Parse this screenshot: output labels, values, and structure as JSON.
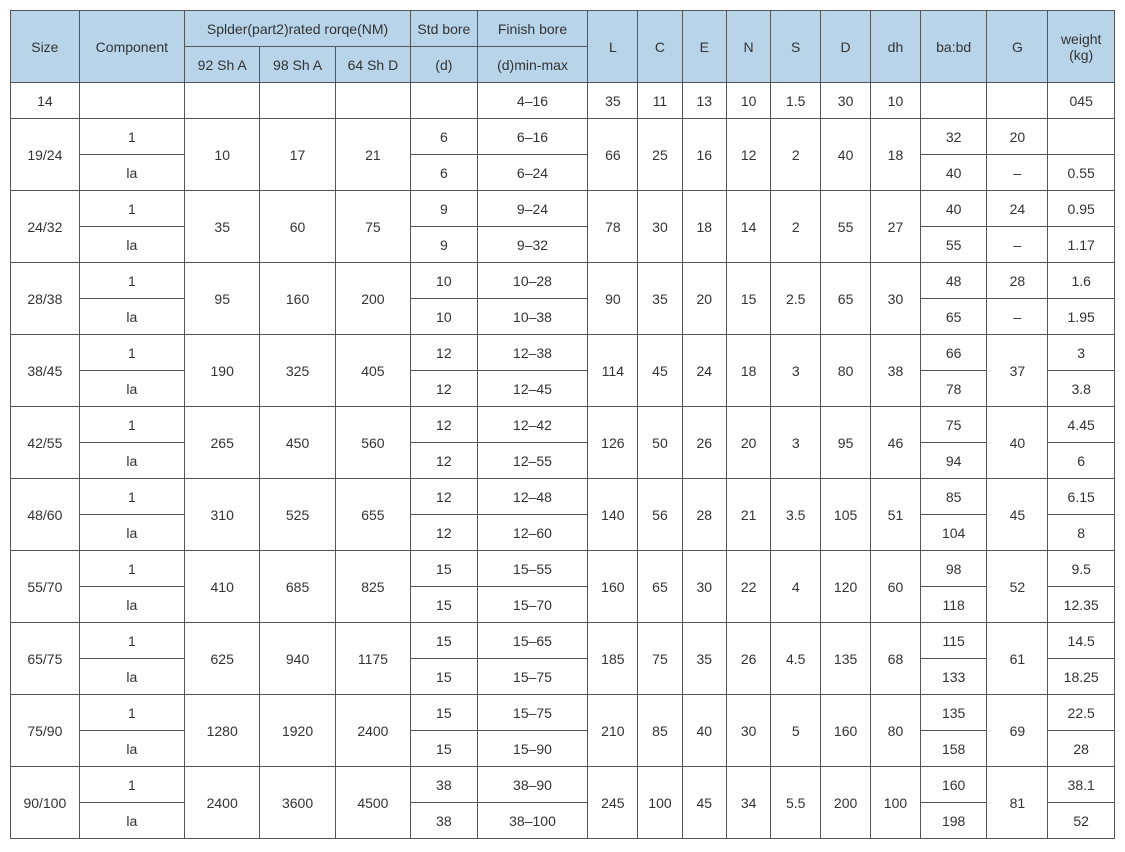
{
  "header_bg": "#b8d4e8",
  "border_color": "#555555",
  "text_color": "#333333",
  "font_size_pt": 11,
  "headers": {
    "size": "Size",
    "component": "Component",
    "spider_group": "Splder(part2)rated rorqe(NM)",
    "sh92": "92 Sh A",
    "sh98": "98 Sh A",
    "sh64": "64 Sh D",
    "stdbore_group": "Std bore",
    "stdbore_sub": "(d)",
    "finishbore_group": "Finish bore",
    "finishbore_sub": "(d)min-max",
    "L": "L",
    "C": "C",
    "E": "E",
    "N": "N",
    "S": "S",
    "D": "D",
    "dh": "dh",
    "babd": "ba:bd",
    "G": "G",
    "weight_line1": "weight",
    "weight_line2": "(kg)"
  },
  "cells": {
    "r1": {
      "size": "14",
      "fin": "4–16",
      "L": "35",
      "C": "11",
      "E": "13",
      "N": "10",
      "S": "1.5",
      "D": "30",
      "dh": "10",
      "wt": "045"
    },
    "r2": {
      "size": "19/24",
      "comp": "1",
      "sh92": "10",
      "sh98": "17",
      "sh64": "21",
      "std": "6",
      "fin": "6–16",
      "L": "66",
      "C": "25",
      "E": "16",
      "N": "12",
      "S": "2",
      "D": "40",
      "dh": "18",
      "babd": "32",
      "G": "20"
    },
    "r3": {
      "comp": "la",
      "std": "6",
      "fin": "6–24",
      "babd": "40",
      "G": "–",
      "wt": "0.55"
    },
    "r4": {
      "size": "24/32",
      "comp": "1",
      "sh92": "35",
      "sh98": "60",
      "sh64": "75",
      "std": "9",
      "fin": "9–24",
      "L": "78",
      "C": "30",
      "E": "18",
      "N": "14",
      "S": "2",
      "D": "55",
      "dh": "27",
      "babd": "40",
      "G": "24",
      "wt": "0.95"
    },
    "r5": {
      "comp": "la",
      "std": "9",
      "fin": "9–32",
      "babd": "55",
      "G": "–",
      "wt": "1.17"
    },
    "r6": {
      "size": "28/38",
      "comp": "1",
      "sh92": "95",
      "sh98": "160",
      "sh64": "200",
      "std": "10",
      "fin": "10–28",
      "L": "90",
      "C": "35",
      "E": "20",
      "N": "15",
      "S": "2.5",
      "D": "65",
      "dh": "30",
      "babd": "48",
      "G": "28",
      "wt": "1.6"
    },
    "r7": {
      "comp": "la",
      "std": "10",
      "fin": "10–38",
      "babd": "65",
      "G": "–",
      "wt": "1.95"
    },
    "r8": {
      "size": "38/45",
      "comp": "1",
      "sh92": "190",
      "sh98": "325",
      "sh64": "405",
      "std": "12",
      "fin": "12–38",
      "L": "114",
      "C": "45",
      "E": "24",
      "N": "18",
      "S": "3",
      "D": "80",
      "dh": "38",
      "babd": "66",
      "G": "37",
      "wt": "3"
    },
    "r9": {
      "comp": "la",
      "std": "12",
      "fin": "12–45",
      "babd": "78",
      "wt": "3.8"
    },
    "r10": {
      "size": "42/55",
      "comp": "1",
      "sh92": "265",
      "sh98": "450",
      "sh64": "560",
      "std": "12",
      "fin": "12–42",
      "L": "126",
      "C": "50",
      "E": "26",
      "N": "20",
      "S": "3",
      "D": "95",
      "dh": "46",
      "babd": "75",
      "G": "40",
      "wt": "4.45"
    },
    "r11": {
      "comp": "la",
      "std": "12",
      "fin": "12–55",
      "babd": "94",
      "wt": "6"
    },
    "r12": {
      "size": "48/60",
      "comp": "1",
      "sh92": "310",
      "sh98": "525",
      "sh64": "655",
      "std": "12",
      "fin": "12–48",
      "L": "140",
      "C": "56",
      "E": "28",
      "N": "21",
      "S": "3.5",
      "D": "105",
      "dh": "51",
      "babd": "85",
      "G": "45",
      "wt": "6.15"
    },
    "r13": {
      "comp": "la",
      "std": "12",
      "fin": "12–60",
      "babd": "104",
      "wt": "8"
    },
    "r14": {
      "size": "55/70",
      "comp": "1",
      "sh92": "410",
      "sh98": "685",
      "sh64": "825",
      "std": "15",
      "fin": "15–55",
      "L": "160",
      "C": "65",
      "E": "30",
      "N": "22",
      "S": "4",
      "D": "120",
      "dh": "60",
      "babd": "98",
      "G": "52",
      "wt": "9.5"
    },
    "r15": {
      "comp": "la",
      "std": "15",
      "fin": "15–70",
      "babd": "118",
      "wt": "12.35"
    },
    "r16": {
      "size": "65/75",
      "comp": "1",
      "sh92": "625",
      "sh98": "940",
      "sh64": "1175",
      "std": "15",
      "fin": "15–65",
      "L": "185",
      "C": "75",
      "E": "35",
      "N": "26",
      "S": "4.5",
      "D": "135",
      "dh": "68",
      "babd": "115",
      "G": "61",
      "wt": "14.5"
    },
    "r17": {
      "comp": "la",
      "std": "15",
      "fin": "15–75",
      "babd": "133",
      "wt": "18.25"
    },
    "r18": {
      "size": "75/90",
      "comp": "1",
      "sh92": "1280",
      "sh98": "1920",
      "sh64": "2400",
      "std": "15",
      "fin": "15–75",
      "L": "210",
      "C": "85",
      "E": "40",
      "N": "30",
      "S": "5",
      "D": "160",
      "dh": "80",
      "babd": "135",
      "G": "69",
      "wt": "22.5"
    },
    "r19": {
      "comp": "la",
      "std": "15",
      "fin": "15–90",
      "babd": "158",
      "wt": "28"
    },
    "r20": {
      "size": "90/100",
      "comp": "1",
      "sh92": "2400",
      "sh98": "3600",
      "sh64": "4500",
      "std": "38",
      "fin": "38–90",
      "L": "245",
      "C": "100",
      "E": "45",
      "N": "34",
      "S": "5.5",
      "D": "200",
      "dh": "100",
      "babd": "160",
      "G": "81",
      "wt": "38.1"
    },
    "r21": {
      "comp": "la",
      "std": "38",
      "fin": "38–100",
      "babd": "198",
      "wt": "52"
    }
  }
}
